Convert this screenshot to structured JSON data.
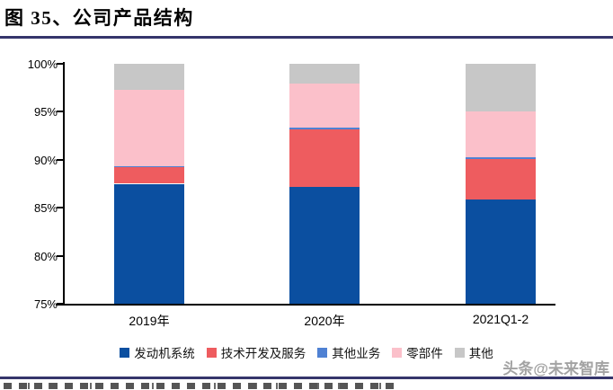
{
  "figure": {
    "title": "图 35、公司产品结构"
  },
  "watermark": {
    "text": "头条@未来智库"
  },
  "chart_data": {
    "type": "bar",
    "stacked": true,
    "title": "图 35、公司产品结构",
    "xlabel": "",
    "ylabel": "",
    "categories": [
      "2019年",
      "2020年",
      "2021Q1-2"
    ],
    "series": [
      {
        "name": "发动机系统",
        "color": "#0B4FA0",
        "values": [
          87.5,
          87.2,
          85.9
        ]
      },
      {
        "name": "技术开发及服务",
        "color": "#EE5C5F",
        "values": [
          1.7,
          6.0,
          4.2
        ]
      },
      {
        "name": "其他业务",
        "color": "#4F81D3",
        "values": [
          0.1,
          0.15,
          0.2
        ]
      },
      {
        "name": "零部件",
        "color": "#FBC0CA",
        "values": [
          8.0,
          4.55,
          4.7
        ]
      },
      {
        "name": "其他",
        "color": "#C7C7C7",
        "pattern": "grid",
        "values": [
          2.7,
          2.1,
          5.0
        ]
      }
    ],
    "ylim": [
      75,
      100
    ],
    "ytick_labels": [
      "100%",
      "95%",
      "90%",
      "85%",
      "80%",
      "75%"
    ],
    "grid": false,
    "legend_position": "bottom"
  },
  "colors": {
    "divider": "#35356B",
    "axis": "#000000"
  }
}
